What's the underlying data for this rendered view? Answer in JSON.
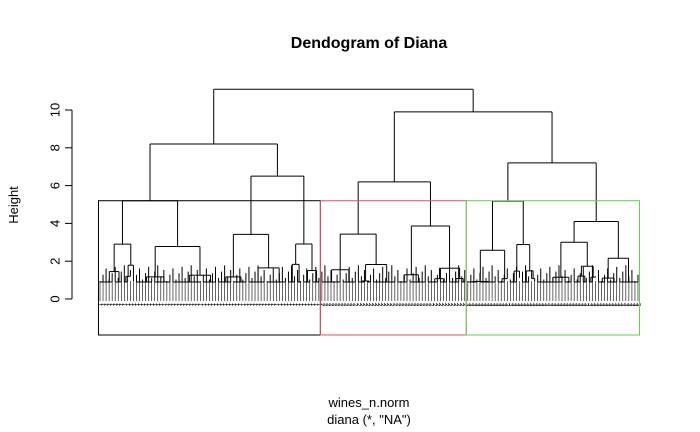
{
  "chart_data": {
    "type": "dendrogram",
    "title": "Dendogram of Diana",
    "ylabel": "Height",
    "xlabel_line1": "wines_n.norm",
    "xlabel_line2": "diana (*, \"NA\")",
    "ylim": [
      0,
      11
    ],
    "yticks": [
      0,
      2,
      4,
      6,
      8,
      10
    ],
    "leaf_count": 178,
    "leaf_label_sample": [
      "1",
      "2",
      "3"
    ],
    "merges": [
      {
        "name": "root",
        "height": 11.1
      },
      {
        "name": "cluster-2-3-join",
        "height": 9.9
      },
      {
        "name": "cluster-1-top",
        "height": 9.0
      },
      {
        "name": "cluster-1-left",
        "height": 8.2
      },
      {
        "name": "cluster-1-right",
        "height": 8.0
      },
      {
        "name": "cluster-3-top",
        "height": 7.2
      },
      {
        "name": "cluster-2-top",
        "height": 6.2
      },
      {
        "name": "cluster-1-mid",
        "height": 6.5
      }
    ],
    "clusters": [
      {
        "id": 1,
        "color": "#000000",
        "start_leaf": 0,
        "end_leaf": 72,
        "height": 5.2
      },
      {
        "id": 2,
        "color": "#df536b",
        "start_leaf": 73,
        "end_leaf": 120,
        "height": 5.2
      },
      {
        "id": 3,
        "color": "#61d04f",
        "start_leaf": 121,
        "end_leaf": 177,
        "height": 5.2
      }
    ],
    "grid": false
  }
}
